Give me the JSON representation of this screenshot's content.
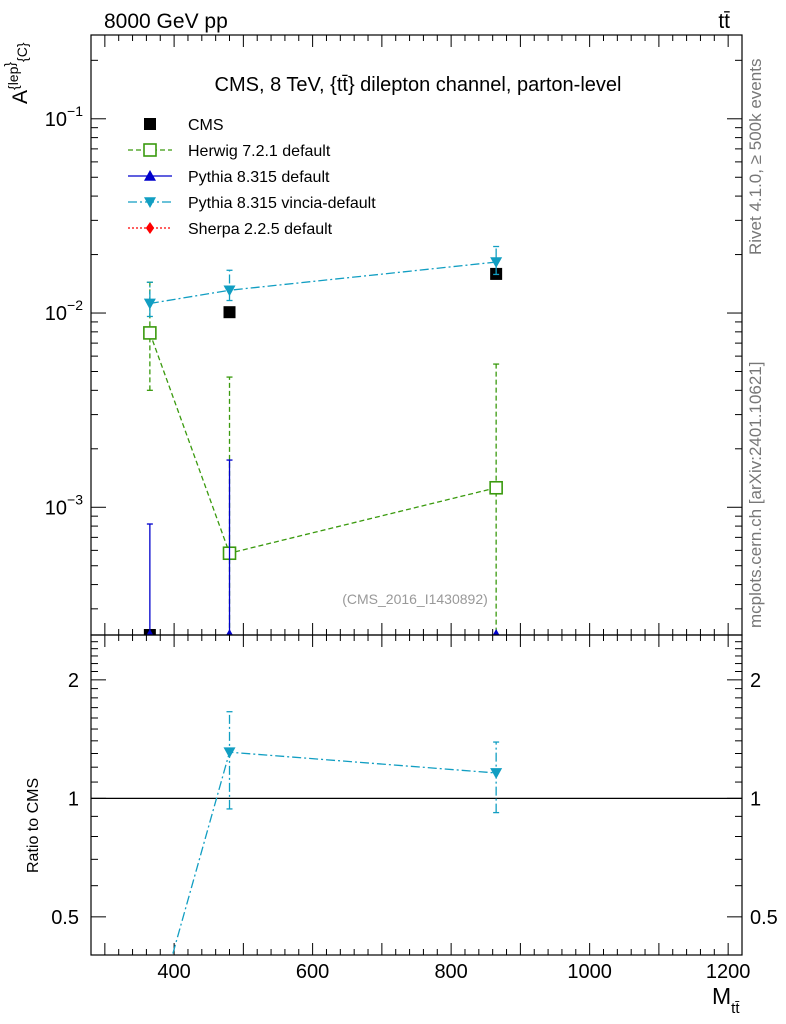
{
  "header": {
    "beam": "8000 GeV pp",
    "process": "tt̄"
  },
  "side_labels": {
    "rivet": "Rivet 4.1.0, ≥ 500k events",
    "mcplots": "mcplots.cern.ch [arXiv:2401.10621]"
  },
  "chart_data": [
    {
      "type": "line",
      "title": "CMS, 8 TeV, {tt̄} dilepton channel, parton-level",
      "ylabel": "A^{lep}_{C}",
      "xlabel": "M_{tt̄}",
      "yscale": "log",
      "xlim": [
        280,
        1220
      ],
      "ylim": [
        0.00022,
        0.27
      ],
      "xticks": [
        400,
        600,
        800,
        1000,
        1200
      ],
      "yticks": [
        {
          "value": 0.001,
          "base": "10",
          "exp": "−3"
        },
        {
          "value": 0.01,
          "base": "10",
          "exp": "−2"
        },
        {
          "value": 0.1,
          "base": "10",
          "exp": "−1"
        }
      ],
      "watermark": "(CMS_2016_I1430892)",
      "series": [
        {
          "name": "CMS",
          "color": "#000000",
          "marker": "square",
          "style": "none",
          "x": [
            365,
            480,
            865
          ],
          "y": [
            0.00022,
            0.0101,
            0.0159
          ],
          "err_low": [
            0,
            0,
            0
          ],
          "err_high": [
            0,
            0,
            0
          ]
        },
        {
          "name": "Herwig 7.2.1 default",
          "color": "#3a9a0e",
          "marker": "open-square",
          "style": "dashed",
          "x": [
            365,
            480,
            865
          ],
          "y": [
            0.0079,
            0.00058,
            0.00126
          ],
          "err_low": [
            0.0039,
            0.0004,
            0.0012
          ],
          "err_high": [
            0.0065,
            0.0041,
            0.0042
          ]
        },
        {
          "name": "Pythia 8.315 default",
          "color": "#0000cc",
          "marker": "triangle-up",
          "style": "solid",
          "x": [
            365,
            480,
            865
          ],
          "y": [
            5e-05,
            5e-05,
            5e-05
          ],
          "err_low": [
            0,
            0,
            0
          ],
          "err_high": [
            0.00077,
            0.0017,
            0
          ]
        },
        {
          "name": "Pythia 8.315 vincia-default",
          "color": "#119ec2",
          "marker": "triangle-down",
          "style": "dashdot",
          "x": [
            365,
            480,
            865
          ],
          "y": [
            0.0112,
            0.0131,
            0.0183
          ],
          "err_low": [
            0.0016,
            0.0015,
            0.0025
          ],
          "err_high": [
            0.0032,
            0.0035,
            0.0037
          ]
        },
        {
          "name": "Sherpa 2.2.5 default",
          "color": "#ff0000",
          "marker": "diamond",
          "style": "dotted",
          "x": [],
          "y": [],
          "err_low": [],
          "err_high": []
        }
      ]
    },
    {
      "type": "line",
      "ylabel": "Ratio to CMS",
      "xlabel": "M_{tt̄}",
      "yscale": "log",
      "xlim": [
        280,
        1220
      ],
      "ylim": [
        0.4,
        2.6
      ],
      "yticks": [
        0.5,
        1,
        2
      ],
      "reference_line": 1,
      "series": [
        {
          "name": "Pythia 8.315 vincia-default",
          "color": "#119ec2",
          "marker": "triangle-down",
          "style": "dashdot",
          "x": [
            365,
            480,
            865
          ],
          "y": [
            0.25,
            1.31,
            1.16
          ],
          "err_low": [
            0,
            0.37,
            0.24
          ],
          "err_high": [
            0,
            0.35,
            0.23
          ],
          "show_marker": [
            false,
            true,
            true
          ]
        }
      ]
    }
  ]
}
